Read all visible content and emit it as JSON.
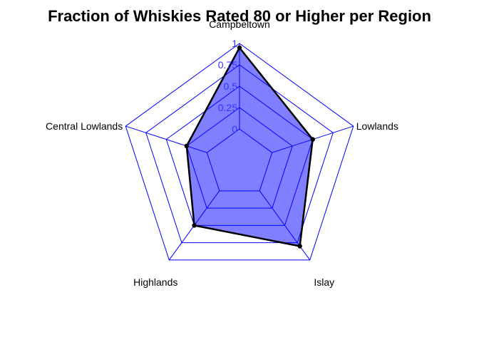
{
  "chart_data": {
    "type": "radar",
    "title": "Fraction of Whiskies Rated 80 or Higher per Region",
    "axes": [
      "Campbeltown",
      "Lowlands",
      "Islay",
      "Highlands",
      "Central Lowlands"
    ],
    "values": [
      0.95,
      0.5,
      0.8,
      0.5,
      0.25
    ],
    "rlim": [
      0,
      1
    ],
    "tick_values": [
      0,
      0.25,
      0.5,
      0.75,
      1
    ],
    "tick_labels": [
      "0",
      "0.25",
      "0.5",
      "0.75",
      "1"
    ],
    "grid_levels": 5,
    "colors": {
      "grid": "#0000ff",
      "fill": "#0000ff",
      "fill_opacity": 0.5,
      "line": "#000000",
      "tick_label": "#3333ff"
    }
  }
}
